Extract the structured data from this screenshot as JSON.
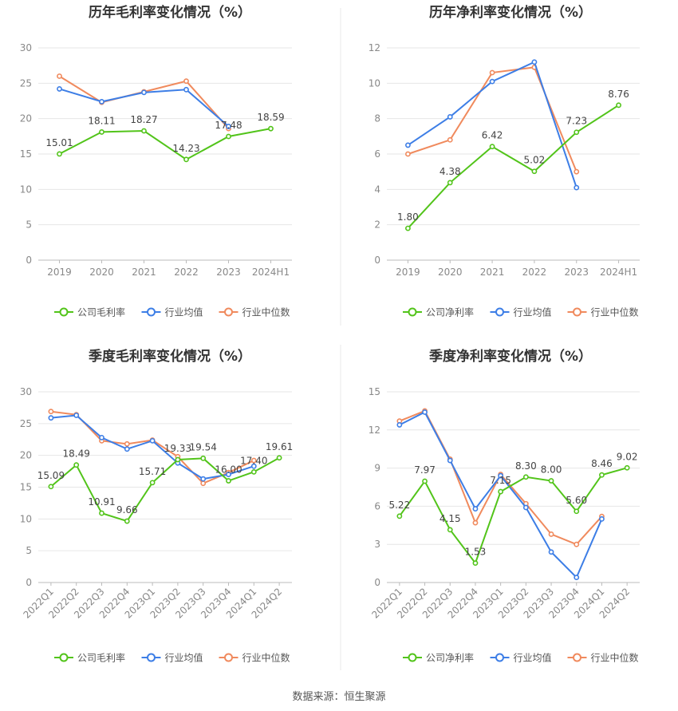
{
  "source_text": "数据来源：恒生聚源",
  "legend_labels": {
    "industry_avg": "行业均值",
    "industry_median": "行业中位数"
  },
  "colors": {
    "company": "#52c41a",
    "industry_avg": "#3d7ee6",
    "industry_median": "#f08a5d"
  },
  "chart_data": [
    {
      "type": "line",
      "title": "历年毛利率变化情况（%）",
      "categories": [
        "2019",
        "2020",
        "2021",
        "2022",
        "2023",
        "2024H1"
      ],
      "ylim": [
        0,
        30
      ],
      "yticks": [
        0,
        5,
        10,
        15,
        20,
        25,
        30
      ],
      "grid": true,
      "legend_position": "bottom",
      "series": [
        {
          "name": "公司毛利率",
          "values": [
            15.01,
            18.11,
            18.27,
            14.23,
            17.48,
            18.59
          ],
          "labels": [
            "15.01",
            "18.11",
            "18.27",
            "14.23",
            "17.48",
            "18.59"
          ]
        },
        {
          "name": "行业均值",
          "values": [
            24.2,
            22.4,
            23.7,
            24.1,
            18.9,
            null
          ]
        },
        {
          "name": "行业中位数",
          "values": [
            26.0,
            22.3,
            23.8,
            25.3,
            18.6,
            null
          ]
        }
      ]
    },
    {
      "type": "line",
      "title": "历年净利率变化情况（%）",
      "categories": [
        "2019",
        "2020",
        "2021",
        "2022",
        "2023",
        "2024H1"
      ],
      "ylim": [
        0,
        12
      ],
      "yticks": [
        0,
        2,
        4,
        6,
        8,
        10,
        12
      ],
      "grid": true,
      "legend_position": "bottom",
      "series": [
        {
          "name": "公司净利率",
          "values": [
            1.8,
            4.38,
            6.42,
            5.02,
            7.23,
            8.76
          ],
          "labels": [
            "1.80",
            "4.38",
            "6.42",
            "5.02",
            "7.23",
            "8.76"
          ]
        },
        {
          "name": "行业均值",
          "values": [
            6.5,
            8.1,
            10.1,
            11.2,
            4.1,
            null
          ]
        },
        {
          "name": "行业中位数",
          "values": [
            6.0,
            6.8,
            10.6,
            10.9,
            5.0,
            null
          ]
        }
      ]
    },
    {
      "type": "line",
      "title": "季度毛利率变化情况（%）",
      "categories": [
        "2022Q1",
        "2022Q2",
        "2022Q3",
        "2022Q4",
        "2023Q1",
        "2023Q2",
        "2023Q3",
        "2023Q4",
        "2024Q1",
        "2024Q2"
      ],
      "ylim": [
        0,
        30
      ],
      "yticks": [
        0,
        5,
        10,
        15,
        20,
        25,
        30
      ],
      "grid": true,
      "legend_position": "bottom",
      "series": [
        {
          "name": "公司毛利率",
          "values": [
            15.09,
            18.49,
            10.91,
            9.66,
            15.71,
            19.33,
            19.54,
            16.0,
            17.4,
            19.61
          ],
          "labels": [
            "15.09",
            "18.49",
            "10.91",
            "9.66",
            "15.71",
            "19.33",
            "19.54",
            "16.00",
            "17.40",
            "19.61"
          ]
        },
        {
          "name": "行业均值",
          "values": [
            25.9,
            26.3,
            22.8,
            21.0,
            22.3,
            18.8,
            16.3,
            17.0,
            18.3,
            null
          ]
        },
        {
          "name": "行业中位数",
          "values": [
            26.9,
            26.4,
            22.3,
            21.8,
            22.4,
            19.8,
            15.6,
            17.3,
            19.2,
            null
          ]
        }
      ]
    },
    {
      "type": "line",
      "title": "季度净利率变化情况（%）",
      "categories": [
        "2022Q1",
        "2022Q2",
        "2022Q3",
        "2022Q4",
        "2023Q1",
        "2023Q2",
        "2023Q3",
        "2023Q4",
        "2024Q1",
        "2024Q2"
      ],
      "ylim": [
        0,
        15
      ],
      "yticks": [
        0,
        3,
        6,
        9,
        12,
        15
      ],
      "grid": true,
      "legend_position": "bottom",
      "series": [
        {
          "name": "公司净利率",
          "values": [
            5.22,
            7.97,
            4.15,
            1.53,
            7.15,
            8.3,
            8.0,
            5.6,
            8.46,
            9.02
          ],
          "labels": [
            "5.22",
            "7.97",
            "4.15",
            "1.53",
            "7.15",
            "8.30",
            "8.00",
            "5.60",
            "8.46",
            "9.02"
          ]
        },
        {
          "name": "行业均值",
          "values": [
            12.4,
            13.4,
            9.6,
            5.8,
            8.4,
            5.9,
            2.4,
            0.4,
            5.0,
            null
          ]
        },
        {
          "name": "行业中位数",
          "values": [
            12.7,
            13.5,
            9.7,
            4.7,
            8.5,
            6.2,
            3.8,
            3.0,
            5.2,
            null
          ]
        }
      ]
    }
  ]
}
